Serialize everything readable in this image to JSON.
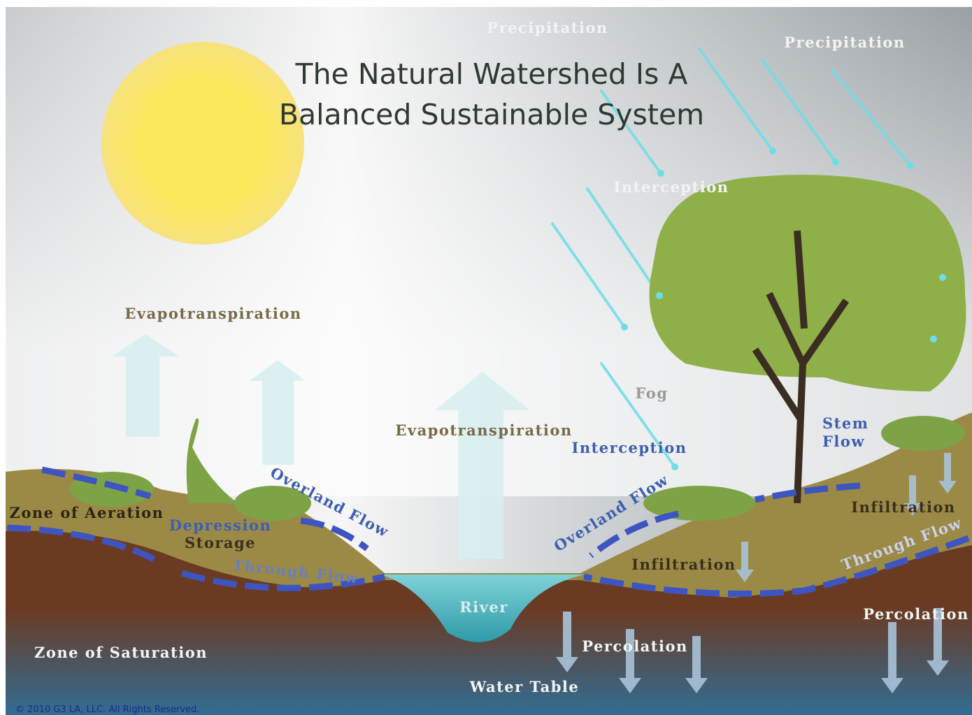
{
  "title": {
    "lines": [
      "The Natural Watershed Is A",
      "Balanced Sustainable System"
    ]
  },
  "labels": [
    "Precipitation",
    "Precipitation",
    "Interception",
    "Interception",
    "Evapotranspiration",
    "Evapotranspiration",
    "Fog",
    "Overland Flow",
    "Overland Flow",
    "Zone of Aeration",
    "Through Flow",
    "Through Flow",
    "River",
    "Infiltration",
    "Infiltration",
    "Percolation",
    "Percolation",
    "Zone of Saturation",
    "Water Table"
  ],
  "stem_flow": [
    "Stem",
    "Flow"
  ],
  "depression_storage": [
    "Depression",
    "Storage"
  ],
  "copyright": "© 2010 G3 LA, LLC. All Rights Reserved."
}
